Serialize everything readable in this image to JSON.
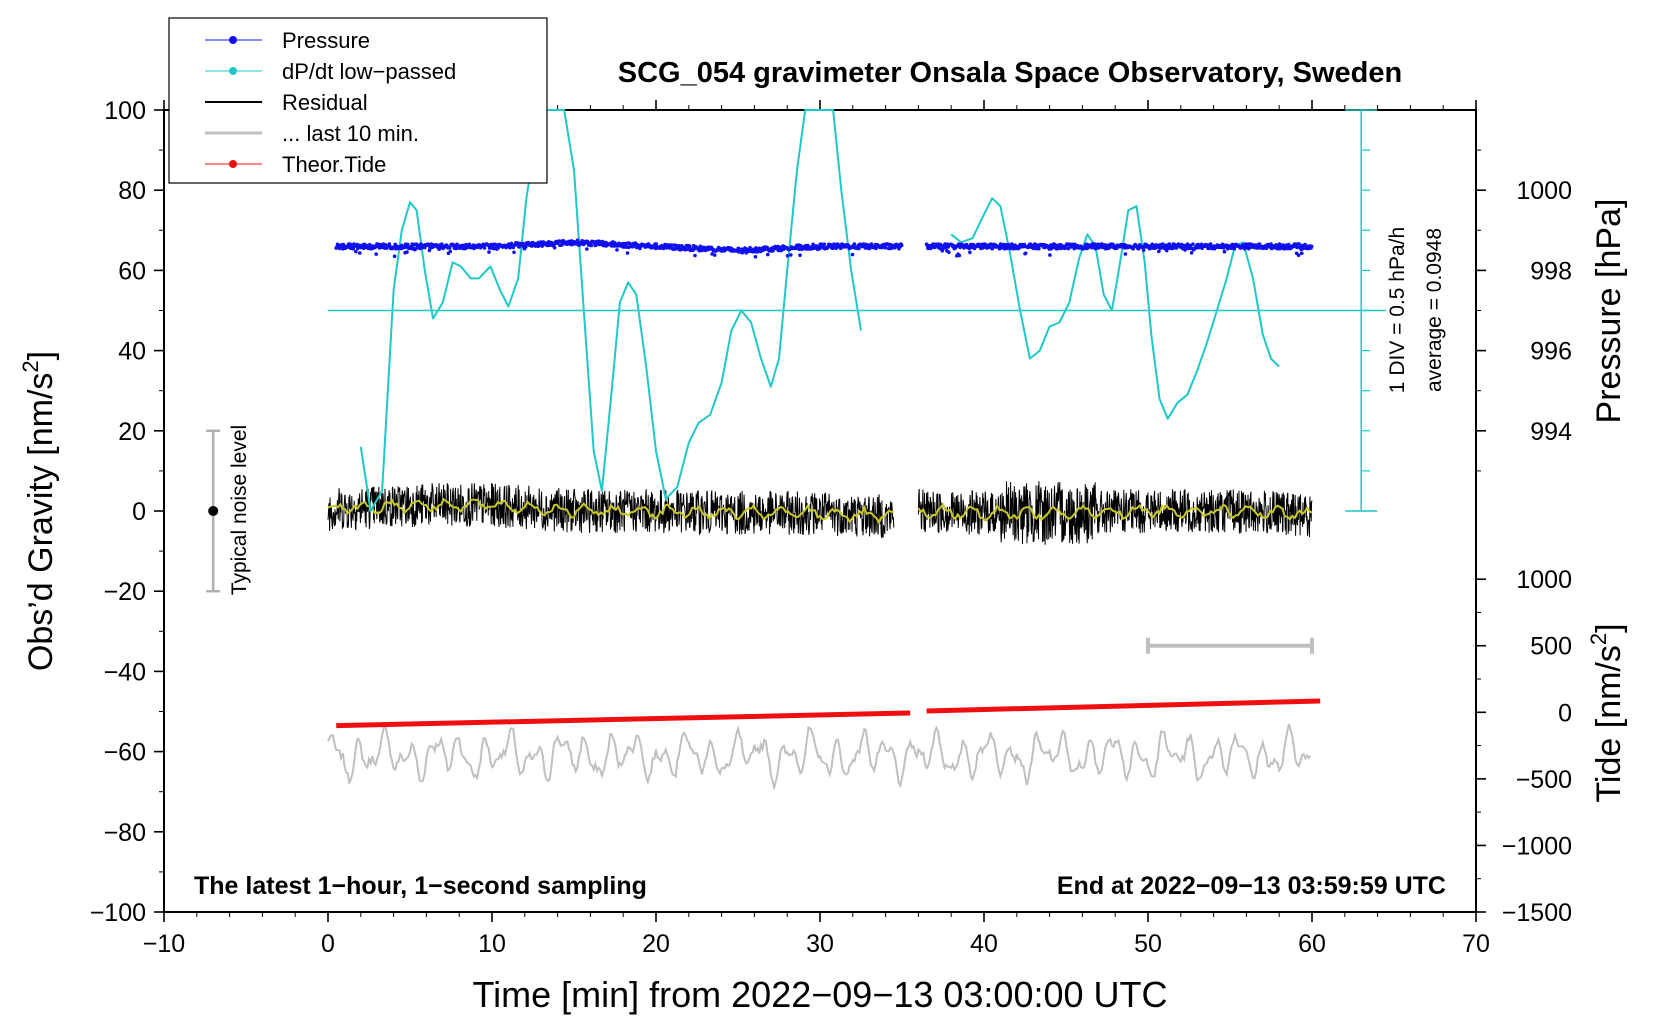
{
  "chart_data": {
    "type": "line",
    "title": "SCG_054 gravimeter Onsala Space Observatory, Sweden",
    "xlabel": "Time [min] from 2022−09−13 03:00:00 UTC",
    "ylabel_main": "Obs’d Gravity [nm/s",
    "ylabel_main_sup": "2",
    "ylabel_main_close": "]",
    "ylabel_pressure": "Pressure [hPa]",
    "ylabel_tide": "Tide [nm/s",
    "ylabel_tide_sup": "2",
    "ylabel_tide_close": "]",
    "xlim": [
      -10,
      70
    ],
    "ylim": [
      -100,
      100
    ],
    "x_ticks": [
      "−10",
      "0",
      "10",
      "20",
      "30",
      "40",
      "50",
      "60",
      "70"
    ],
    "x_tick_values": [
      -10,
      0,
      10,
      20,
      30,
      40,
      50,
      60,
      70
    ],
    "y_ticks": [
      "100",
      "80",
      "60",
      "40",
      "20",
      "0",
      "−20",
      "−40",
      "−60",
      "−80",
      "−100"
    ],
    "y_tick_values": [
      100,
      80,
      60,
      40,
      20,
      0,
      -20,
      -40,
      -60,
      -80,
      -100
    ],
    "pressure_axis": {
      "ticks": [
        "1000",
        "998",
        "996",
        "994"
      ],
      "tick_values": [
        1000,
        998,
        996,
        994
      ],
      "map": {
        "hpa_a": 1000,
        "g_a": 80,
        "hpa_b": 994,
        "g_b": 20
      }
    },
    "tide_axis": {
      "ticks": [
        "1000",
        "500",
        "0",
        "−500",
        "−1000",
        "−1500"
      ],
      "tick_values": [
        1000,
        500,
        0,
        -500,
        -1000,
        -1500
      ],
      "map": {
        "tide_a": 1000,
        "g_a": -17,
        "tide_b": -1500,
        "g_b": -100
      }
    },
    "legend": {
      "position": "top-left",
      "entries": [
        {
          "label": "Pressure",
          "color": "#1010ee",
          "marker": true
        },
        {
          "label": "dP/dt low−passed",
          "color": "#20c8c8",
          "marker": true
        },
        {
          "label": "Residual",
          "color": "#000000",
          "marker": false
        },
        {
          "label": "... last 10 min.",
          "color": "#c0c0c0",
          "marker": false
        },
        {
          "label": "Theor.Tide",
          "color": "#ee1010",
          "marker": true
        }
      ]
    },
    "annotations": {
      "div_label": "1 DIV = 0.5 hPa/h",
      "average_label": "average = 0.0948",
      "noise_label": "Typical noise level",
      "bottom_left": "The latest 1−hour, 1−second sampling",
      "bottom_right": "End at 2022−09−13 03:59:59 UTC"
    },
    "noise_bar": {
      "x": -7,
      "center": 0,
      "low": -20,
      "high": 20
    },
    "dpdt_reference_level": 50,
    "dpdt_axis_x": 63,
    "last10_bar": {
      "x_start": 50,
      "x_end": 60,
      "tide_level": 500
    },
    "series": [
      {
        "name": "dP/dt low−passed",
        "color": "#20c8c8",
        "x": [
          2.0,
          2.6,
          3.3,
          4.0,
          4.5,
          5.0,
          5.4,
          5.9,
          6.4,
          7.0,
          7.6,
          8.1,
          8.7,
          9.2,
          9.9,
          10.5,
          11.0,
          11.6,
          12.1,
          12.7,
          13.3,
          13.9,
          14.4,
          15.0,
          15.6,
          16.2,
          16.7,
          17.3,
          17.8,
          18.3,
          18.8,
          19.4,
          20.0,
          20.6,
          21.3,
          22.0,
          22.6,
          23.3,
          24.0,
          24.6,
          25.2,
          25.8,
          26.4,
          27.0,
          27.5,
          28.0,
          28.6,
          29.1,
          29.7,
          30.3,
          30.8,
          31.3,
          31.9,
          32.5
        ],
        "y": [
          16,
          0,
          5,
          55,
          70,
          77,
          75,
          60,
          48,
          52,
          62,
          61,
          58,
          58,
          61,
          55,
          51,
          58,
          78,
          94,
          100,
          100,
          100,
          85,
          50,
          15,
          5,
          30,
          52,
          57,
          54,
          36,
          15,
          3,
          6,
          17,
          22,
          24,
          32,
          45,
          50,
          47,
          38,
          31,
          38,
          60,
          85,
          100,
          100,
          100,
          100,
          80,
          60,
          45
        ]
      },
      {
        "name": "dP/dt low−passed (after gap)",
        "color": "#20c8c8",
        "x": [
          38.0,
          38.6,
          39.3,
          40.0,
          40.5,
          41.0,
          41.6,
          42.2,
          42.8,
          43.4,
          44.0,
          44.6,
          45.2,
          45.8,
          46.3,
          46.8,
          47.3,
          47.8,
          48.3,
          48.8,
          49.3,
          49.8,
          50.2,
          50.7,
          51.2,
          51.8,
          52.4,
          53.0,
          53.6,
          54.2,
          54.8,
          55.3,
          55.8,
          56.4,
          57.0,
          57.5,
          58.0
        ],
        "y": [
          69,
          67,
          68,
          74,
          78,
          76,
          64,
          50,
          38,
          40,
          46,
          47,
          52,
          63,
          69,
          66,
          54,
          50,
          62,
          75,
          76,
          62,
          44,
          28,
          23,
          27,
          29,
          35,
          42,
          50,
          58,
          66,
          67,
          58,
          44,
          38,
          36
        ]
      },
      {
        "name": "Pressure",
        "color": "#1010ee",
        "unit": "hPa",
        "segments": [
          {
            "x": [
              0.5,
              5,
              10,
              15,
              20,
              25,
              30,
              35
            ],
            "y": [
              998.6,
              998.6,
              998.6,
              998.7,
              998.6,
              998.5,
              998.6,
              998.6
            ]
          },
          {
            "x": [
              36.5,
              40,
              45,
              50,
              55,
              60
            ],
            "y": [
              998.6,
              998.6,
              998.6,
              998.6,
              998.6,
              998.6
            ]
          }
        ]
      },
      {
        "name": "Residual",
        "color": "#000000",
        "segments": [
          {
            "x": [
              0,
              5,
              10,
              15,
              20,
              25,
              30,
              34.5
            ],
            "y": [
              0.5,
              1.5,
              1.5,
              0,
              0,
              -0.5,
              -0.5,
              -1.5
            ]
          },
          {
            "x": [
              36,
              40,
              45,
              50,
              55,
              60
            ],
            "y": [
              0,
              -0.5,
              -0.5,
              0,
              0,
              -1
            ]
          }
        ]
      },
      {
        "name": "Theor.Tide",
        "color": "#ee1010",
        "unit": "nm/s2",
        "segments": [
          {
            "x": [
              0.5,
              35.5
            ],
            "y": [
              -100,
              -5
            ]
          },
          {
            "x": [
              36.5,
              60.5
            ],
            "y": [
              10,
              85
            ]
          }
        ]
      },
      {
        "name": "Tide residual (grey)",
        "color": "#c0c0c0",
        "x_range": [
          0,
          60
        ],
        "center": -61,
        "amplitude": 6
      }
    ]
  }
}
